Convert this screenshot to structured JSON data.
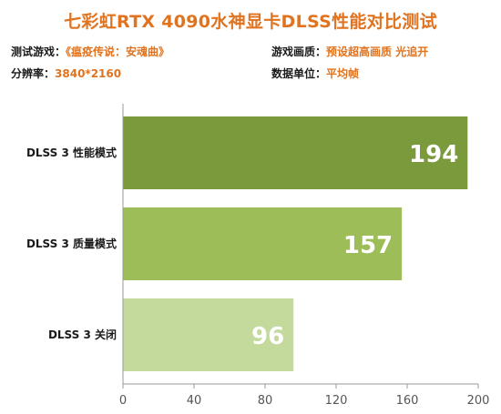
{
  "title": "七彩虹RTX 4090水神显卡DLSS性能对比测试",
  "info": {
    "game_label": "测试游戏：",
    "game_value": "《瘟疫传说：安魂曲》",
    "quality_label": "游戏画质：",
    "quality_value": "预设超高画质  光追开",
    "resolution_label": "分辨率：",
    "resolution_value": "3840*2160",
    "unit_label": "数据单位：",
    "unit_value": "平均帧"
  },
  "colors": {
    "accent": "#e0731f",
    "bars": [
      "#7a9a3c",
      "#9cbd57",
      "#c4d99c"
    ],
    "value_text": "#ffffff",
    "axis": "#9a9a9a"
  },
  "chart_data": {
    "type": "bar",
    "orientation": "horizontal",
    "categories": [
      "DLSS 3 性能模式",
      "DLSS 3 质量模式",
      "DLSS 3 关闭"
    ],
    "values": [
      194,
      157,
      96
    ],
    "xlim": [
      0,
      200
    ],
    "xticks": [
      0,
      40,
      80,
      120,
      160,
      200
    ],
    "grid": false,
    "legend": "none"
  }
}
